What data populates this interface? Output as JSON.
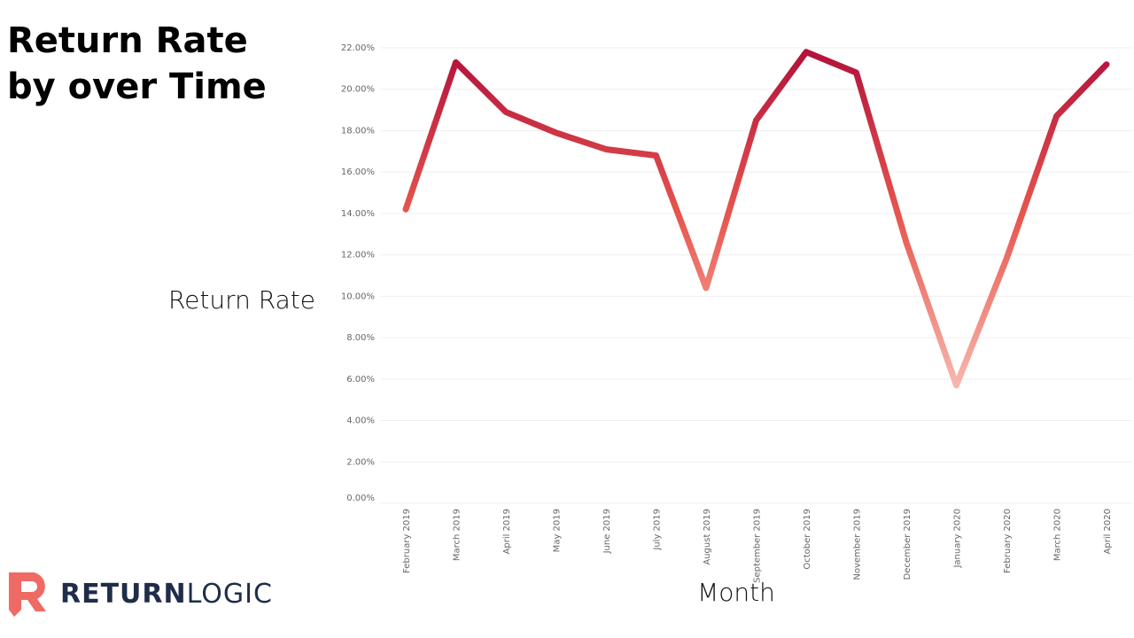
{
  "chart_data": {
    "type": "line",
    "title": "Return Rate by over Time",
    "x_label": "Month",
    "y_label": "Return Rate",
    "categories": [
      "February 2019",
      "March 2019",
      "April 2019",
      "May 2019",
      "June 2019",
      "July 2019",
      "August 2019",
      "September 2019",
      "October 2019",
      "November 2019",
      "December 2019",
      "January 2020",
      "February 2020",
      "March 2020",
      "April 2020"
    ],
    "series": [
      {
        "name": "Return Rate",
        "colors": [
          "#f7b7ad",
          "#e8574f",
          "#b3123b"
        ],
        "values": [
          14.2,
          21.3,
          18.9,
          17.9,
          17.1,
          16.8,
          10.4,
          18.5,
          21.8,
          20.8,
          12.6,
          5.7,
          11.8,
          18.7,
          21.2
        ]
      }
    ],
    "ylim": [
      0,
      22
    ],
    "yticks": [
      {
        "value": 0,
        "label": "0.00%"
      },
      {
        "value": 2,
        "label": "2.00%"
      },
      {
        "value": 4,
        "label": "4.00%"
      },
      {
        "value": 6,
        "label": "6.00%"
      },
      {
        "value": 8,
        "label": "8.00%"
      },
      {
        "value": 10,
        "label": "10.00%"
      },
      {
        "value": 12,
        "label": "12.00%"
      },
      {
        "value": 14,
        "label": "14.00%"
      },
      {
        "value": 16,
        "label": "16.00%"
      },
      {
        "value": 18,
        "label": "18.00%"
      },
      {
        "value": 20,
        "label": "20.00%"
      },
      {
        "value": 22,
        "label": "22.00%"
      }
    ],
    "grid": true
  },
  "logo": {
    "bold": "RETURN",
    "light": "LOGIC"
  }
}
